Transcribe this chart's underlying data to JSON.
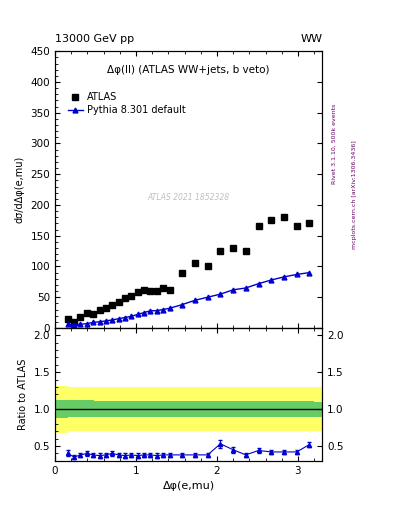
{
  "title_left": "13000 GeV pp",
  "title_right": "WW",
  "plot_title": "Δφ(ll) (ATLAS WW+jets, b veto)",
  "xlabel": "Δφ(e,mu)",
  "ylabel_main": "dσ/dΔφ(e,mu)",
  "ylabel_ratio": "Ratio to ATLAS",
  "right_label": "Rivet 3.1.10, 500k events",
  "right_label2": "mcplots.cern.ch [arXiv:1306.3436]",
  "watermark": "ATLAS 2021 1852328",
  "legend1": "ATLAS",
  "legend2": "Pythia 8.301 default",
  "atlas_x": [
    0.157,
    0.236,
    0.314,
    0.393,
    0.471,
    0.55,
    0.628,
    0.707,
    0.785,
    0.864,
    0.942,
    1.021,
    1.099,
    1.178,
    1.257,
    1.335,
    1.414,
    1.571,
    1.728,
    1.885,
    2.042,
    2.199,
    2.356,
    2.513,
    2.67,
    2.827,
    2.984,
    3.141
  ],
  "atlas_y": [
    15.0,
    10.0,
    18.0,
    25.0,
    22.0,
    30.0,
    32.0,
    38.0,
    42.0,
    48.0,
    52.0,
    58.0,
    62.0,
    60.0,
    60.0,
    65.0,
    62.0,
    90.0,
    105.0,
    100.0,
    125.0,
    130.0,
    125.0,
    165.0,
    175.0,
    180.0,
    165.0,
    170.0
  ],
  "pythia_x": [
    0.157,
    0.236,
    0.314,
    0.393,
    0.471,
    0.55,
    0.628,
    0.707,
    0.785,
    0.864,
    0.942,
    1.021,
    1.099,
    1.178,
    1.257,
    1.335,
    1.414,
    1.571,
    1.728,
    1.885,
    2.042,
    2.199,
    2.356,
    2.513,
    2.67,
    2.827,
    2.984,
    3.141
  ],
  "pythia_y": [
    6.0,
    5.0,
    6.0,
    7.0,
    9.0,
    10.0,
    11.5,
    13.0,
    15.0,
    17.0,
    19.0,
    22.0,
    25.0,
    28.0,
    28.0,
    30.0,
    32.0,
    38.0,
    45.0,
    50.0,
    55.0,
    62.0,
    65.0,
    72.0,
    78.0,
    83.0,
    87.0,
    90.0
  ],
  "ratio_x": [
    0.157,
    0.236,
    0.314,
    0.393,
    0.471,
    0.55,
    0.628,
    0.707,
    0.785,
    0.864,
    0.942,
    1.021,
    1.099,
    1.178,
    1.257,
    1.335,
    1.414,
    1.571,
    1.728,
    1.885,
    2.042,
    2.199,
    2.356,
    2.513,
    2.67,
    2.827,
    2.984,
    3.141
  ],
  "ratio_y": [
    0.4,
    0.35,
    0.38,
    0.4,
    0.38,
    0.37,
    0.38,
    0.4,
    0.38,
    0.37,
    0.38,
    0.37,
    0.38,
    0.38,
    0.37,
    0.38,
    0.38,
    0.38,
    0.38,
    0.38,
    0.53,
    0.45,
    0.38,
    0.44,
    0.42,
    0.42,
    0.42,
    0.52
  ],
  "ratio_yerr": [
    0.04,
    0.03,
    0.03,
    0.03,
    0.03,
    0.03,
    0.03,
    0.03,
    0.03,
    0.03,
    0.03,
    0.03,
    0.03,
    0.03,
    0.03,
    0.03,
    0.03,
    0.03,
    0.03,
    0.03,
    0.05,
    0.04,
    0.03,
    0.04,
    0.03,
    0.03,
    0.03,
    0.03
  ],
  "green_band_lo": 0.9,
  "green_band_hi": 1.1,
  "yellow_band_lo": 0.7,
  "yellow_band_hi": 1.3,
  "ylim_main": [
    0,
    450
  ],
  "ylim_ratio": [
    0.3,
    2.1
  ],
  "xlim": [
    0,
    3.3
  ],
  "atlas_color": "black",
  "pythia_color": "#0000cc",
  "green_color": "#66cc66",
  "yellow_color": "#ffff66",
  "main_yticks": [
    0,
    50,
    100,
    150,
    200,
    250,
    300,
    350,
    400,
    450
  ],
  "ratio_yticks": [
    0.5,
    1.0,
    1.5,
    2.0
  ],
  "xticks": [
    0,
    1,
    2,
    3
  ]
}
